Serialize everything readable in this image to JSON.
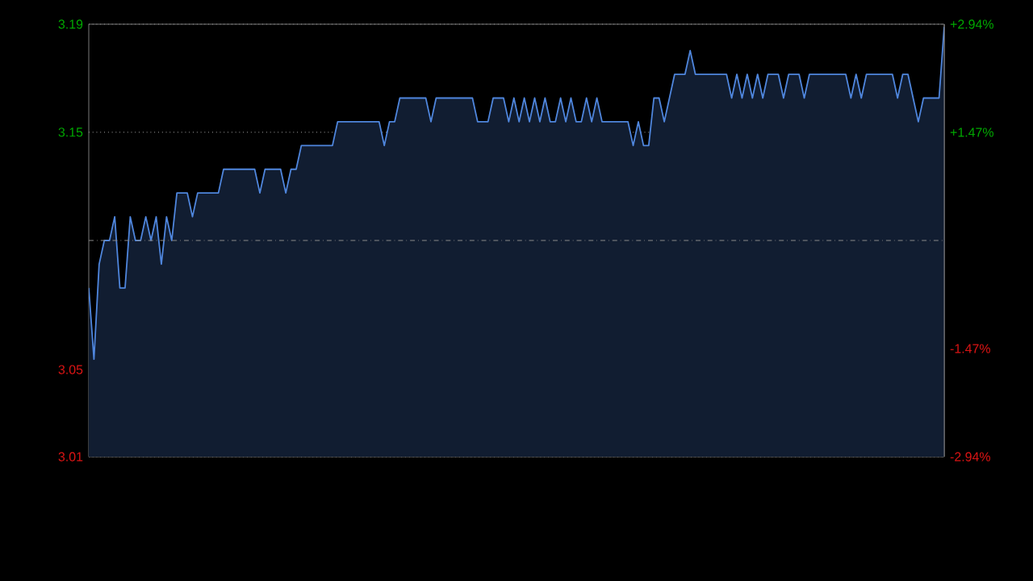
{
  "chart_data": {
    "type": "area",
    "color": "#4f86dd",
    "categories": [
      null,
      null,
      null,
      null,
      null,
      null,
      null,
      null,
      null,
      null,
      null,
      null,
      null,
      null,
      null,
      null,
      null,
      null,
      null,
      null,
      null,
      null,
      null,
      null,
      null,
      null,
      null,
      null,
      null,
      null,
      null,
      null,
      null,
      null,
      null,
      null,
      null,
      null,
      null,
      null,
      null,
      null,
      null,
      null,
      null,
      null,
      null,
      null,
      null,
      null,
      null,
      null,
      null,
      null,
      null,
      null,
      null,
      null,
      null,
      null,
      null,
      null,
      null,
      null,
      null,
      null,
      null,
      null,
      null,
      null,
      null,
      null,
      null,
      null,
      null,
      null,
      null,
      null,
      null,
      null,
      null,
      null,
      null,
      null,
      null,
      null,
      null,
      null,
      null,
      null,
      null,
      null,
      null,
      null,
      null,
      null,
      null,
      null,
      null,
      null,
      null,
      null,
      null,
      null,
      null,
      null,
      null,
      null,
      null,
      null,
      null,
      null,
      null,
      null,
      null,
      null,
      null,
      null,
      null,
      null,
      null,
      null,
      null,
      null,
      null,
      null,
      null,
      null,
      null,
      null,
      null,
      null,
      null,
      null,
      null,
      null,
      null,
      null,
      null,
      null,
      null,
      null,
      null,
      null,
      null,
      null,
      null,
      null,
      null,
      null,
      null,
      null,
      null,
      null,
      null,
      null,
      null,
      null,
      null,
      null,
      null,
      null,
      null,
      null,
      null,
      null
    ],
    "values": [
      3.08,
      3.05,
      3.09,
      3.1,
      3.1,
      3.11,
      3.08,
      3.08,
      3.11,
      3.1,
      3.1,
      3.11,
      3.1,
      3.11,
      3.09,
      3.11,
      3.1,
      3.12,
      3.12,
      3.12,
      3.11,
      3.12,
      3.12,
      3.12,
      3.12,
      3.12,
      3.13,
      3.13,
      3.13,
      3.13,
      3.13,
      3.13,
      3.13,
      3.12,
      3.13,
      3.13,
      3.13,
      3.13,
      3.12,
      3.13,
      3.13,
      3.14,
      3.14,
      3.14,
      3.14,
      3.14,
      3.14,
      3.14,
      3.15,
      3.15,
      3.15,
      3.15,
      3.15,
      3.15,
      3.15,
      3.15,
      3.15,
      3.14,
      3.15,
      3.15,
      3.16,
      3.16,
      3.16,
      3.16,
      3.16,
      3.16,
      3.15,
      3.16,
      3.16,
      3.16,
      3.16,
      3.16,
      3.16,
      3.16,
      3.16,
      3.15,
      3.15,
      3.15,
      3.16,
      3.16,
      3.16,
      3.15,
      3.16,
      3.15,
      3.16,
      3.15,
      3.16,
      3.15,
      3.16,
      3.15,
      3.15,
      3.16,
      3.15,
      3.16,
      3.15,
      3.15,
      3.16,
      3.15,
      3.16,
      3.15,
      3.15,
      3.15,
      3.15,
      3.15,
      3.15,
      3.14,
      3.15,
      3.14,
      3.14,
      3.16,
      3.16,
      3.15,
      3.16,
      3.17,
      3.17,
      3.17,
      3.18,
      3.17,
      3.17,
      3.17,
      3.17,
      3.17,
      3.17,
      3.17,
      3.16,
      3.17,
      3.16,
      3.17,
      3.16,
      3.17,
      3.16,
      3.17,
      3.17,
      3.17,
      3.16,
      3.17,
      3.17,
      3.17,
      3.16,
      3.17,
      3.17,
      3.17,
      3.17,
      3.17,
      3.17,
      3.17,
      3.17,
      3.16,
      3.17,
      3.16,
      3.17,
      3.17,
      3.17,
      3.17,
      3.17,
      3.17,
      3.16,
      3.17,
      3.17,
      3.16,
      3.15,
      3.16,
      3.16,
      3.16,
      3.16,
      3.19
    ],
    "ylim": [
      3.0089,
      3.1911
    ],
    "yticks": [
      {
        "value": 3.0089,
        "label": "3.01"
      },
      {
        "value": 3.0456,
        "label": "3.05"
      },
      {
        "value": 3.1456,
        "label": "3.15"
      },
      {
        "value": 3.1911,
        "label": "3.19"
      }
    ],
    "y2lim": [
      -2.94,
      2.94
    ],
    "y2ticks": [
      {
        "value": -2.94,
        "label": "-2.94%"
      },
      {
        "value": -1.47,
        "label": "-1.47%"
      },
      {
        "value": 1.47,
        "label": "+1.47%"
      },
      {
        "value": 2.94,
        "label": "+2.94%"
      }
    ],
    "ref_lines": [
      {
        "axis": "y",
        "value": 3.1,
        "color": "#8a8a8a",
        "line_style": "dashed"
      }
    ],
    "grid": "y",
    "legend": false
  }
}
